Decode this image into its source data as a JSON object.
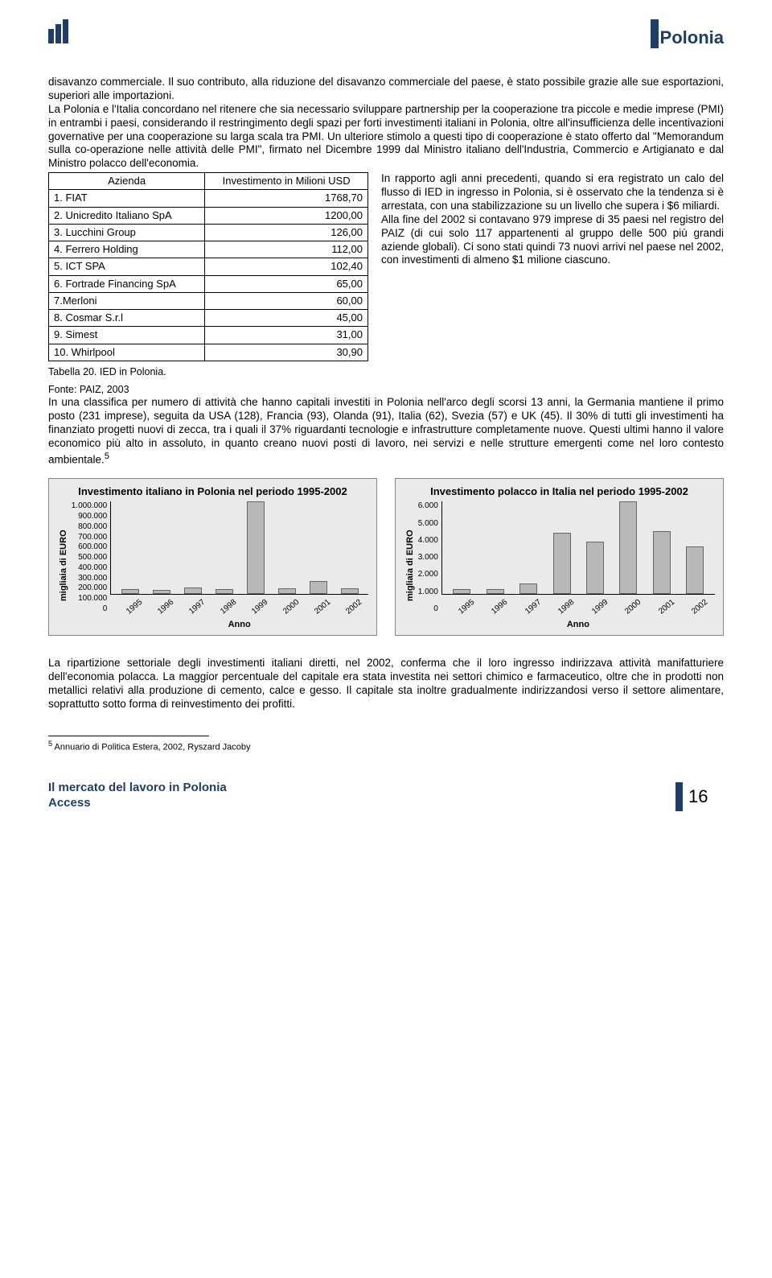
{
  "header": {
    "title": "Polonia",
    "title_color": "#1f3d6b"
  },
  "paragraphs": {
    "p1": "disavanzo commerciale. Il suo contributo, alla riduzione del disavanzo commerciale del paese, è stato possibile grazie alle sue esportazioni, superiori alle importazioni.",
    "p2": "La Polonia e l'Italia concordano nel ritenere che sia necessario sviluppare partnership per la cooperazione tra piccole e medie imprese (PMI) in entrambi i paesi, considerando il restringimento degli spazi per forti investimenti italiani in Polonia, oltre all'insufficienza delle incentivazioni governative per una cooperazione su larga scala tra PMI. Un ulteriore stimolo a questi tipo di cooperazione è stato offerto dal \"Memorandum sulla co-operazione nelle attività delle PMI\", firmato nel Dicembre 1999 dal Ministro italiano dell'Industria, Commercio e Artigianato e dal Ministro polacco dell'economia.",
    "right1": "In rapporto agli anni precedenti, quando si era registrato un calo del flusso di IED in ingresso in Polonia, si è osservato che la tendenza si è arrestata, con una stabilizzazione su un livello che supera i $6 miliardi.",
    "right2": "Alla fine del 2002 si contavano 979 imprese di 35 paesi nel registro del PAIZ (di cui solo 117 appartenenti al gruppo delle 500 più grandi aziende globali). Ci sono stati quindi 73 nuovi arrivi nel paese nel 2002, con investimenti di almeno $1 milione ciascuno.",
    "right3": "In una classifica per numero di attività che hanno capitali investiti in Polonia nell'arco degli scorsi 13 anni, la Germania mantiene il primo posto (231 imprese), seguita da USA (128), Francia (93), Olanda (91), Italia (62), Svezia (57) e UK (45). Il 30% di tutti gli investimenti ha finanziato progetti nuovi di zecca, tra i quali il 37% riguardanti tecnologie e infrastrutture completamente nuove. Questi ultimi hanno il valore economico più alto in assoluto, in quanto creano nuovi posti di lavoro, nei servizi e nelle strutture emergenti come nel loro contesto ambientale.",
    "sup5": "5",
    "p_after_charts": "La ripartizione settoriale degli investimenti italiani diretti, nel 2002, conferma che il loro ingresso indirizzava attività manifatturiere dell'economia polacca. La maggior percentuale del capitale era stata investita nei settori chimico e farmaceutico, oltre che in prodotti non metallici relativi alla produzione di cemento, calce e gesso. Il capitale sta inoltre gradualmente indirizzandosi verso il settore alimentare, soprattutto sotto forma di reinvestimento dei profitti."
  },
  "table": {
    "col1_header": "Azienda",
    "col2_header": "Investimento in Milioni USD",
    "rows": [
      {
        "n": "1. FIAT",
        "v": "1768,70"
      },
      {
        "n": "2. Unicredito Italiano SpA",
        "v": "1200,00"
      },
      {
        "n": "3. Lucchini Group",
        "v": "126,00"
      },
      {
        "n": "4. Ferrero Holding",
        "v": "112,00"
      },
      {
        "n": "5. ICT SPA",
        "v": "102,40"
      },
      {
        "n": "6. Fortrade Financing SpA",
        "v": "65,00"
      },
      {
        "n": "7.Merloni",
        "v": "60,00"
      },
      {
        "n": "8. Cosmar S.r.l",
        "v": "45,00"
      },
      {
        "n": "9. Simest",
        "v": "31,00"
      },
      {
        "n": "10. Whirlpool",
        "v": "30,90"
      }
    ],
    "caption1": "Tabella 20. IED in Polonia.",
    "caption2": "Fonte: PAIZ, 2003"
  },
  "chart1": {
    "type": "bar",
    "title": "Investimento italiano in Polonia nel periodo 1995-2002",
    "y_label": "migliaia di EURO",
    "x_label": "Anno",
    "y_ticks": [
      "1.000.000",
      "900.000",
      "800.000",
      "700.000",
      "600.000",
      "500.000",
      "400.000",
      "300.000",
      "200.000",
      "100.000",
      "0"
    ],
    "y_max": 1000000,
    "categories": [
      "1995",
      "1996",
      "1997",
      "1998",
      "1999",
      "2000",
      "2001",
      "2002"
    ],
    "values": [
      50000,
      40000,
      70000,
      50000,
      1000000,
      60000,
      140000,
      60000
    ],
    "bar_color": "#b8b8b8",
    "bar_border": "#666666",
    "background": "#eaeaea"
  },
  "chart2": {
    "type": "bar",
    "title": "Investimento polacco in Italia nel periodo 1995-2002",
    "y_label": "migliaia di EURO",
    "x_label": "Anno",
    "y_ticks": [
      "6.000",
      "5.000",
      "4.000",
      "3.000",
      "2.000",
      "1.000",
      "0"
    ],
    "y_max": 6000,
    "categories": [
      "1995",
      "1996",
      "1997",
      "1998",
      "1999",
      "2000",
      "2001",
      "2002"
    ],
    "values": [
      300,
      300,
      700,
      4000,
      3400,
      6000,
      4100,
      3100
    ],
    "bar_color": "#b8b8b8",
    "bar_border": "#666666",
    "background": "#eaeaea"
  },
  "footnote": {
    "num": "5",
    "text": " Annuario di Politica Estera, 2002, Ryszard Jacoby"
  },
  "footer": {
    "line1": "Il mercato del lavoro in Polonia",
    "line2": "Access",
    "page": "16",
    "color": "#1f3d6b"
  }
}
